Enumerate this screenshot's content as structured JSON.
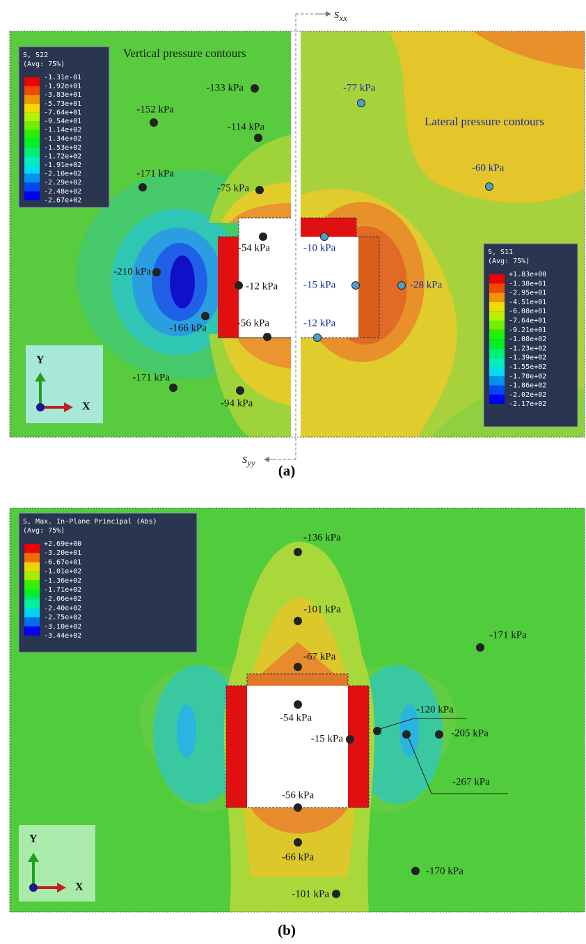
{
  "panel_a": {
    "caption": "(a)",
    "axis_x": {
      "symbol": "s",
      "subscript": "xx"
    },
    "axis_y": {
      "symbol": "s",
      "subscript": "yy"
    },
    "title_vertical": "Vertical pressure contours",
    "title_lateral": "Lateral pressure contours",
    "legend_s22": {
      "lines": [
        "S, S22",
        "(Avg: 75%)"
      ],
      "values": [
        "-1.31e-01",
        "-1.92e+01",
        "-3.83e+01",
        "-5.73e+01",
        "-7.64e+01",
        "-9.54e+01",
        "-1.14e+02",
        "-1.34e+02",
        "-1.53e+02",
        "-1.72e+02",
        "-1.91e+02",
        "-2.10e+02",
        "-2.29e+02",
        "-2.48e+02",
        "-2.67e+02"
      ]
    },
    "legend_s11": {
      "lines": [
        "S, S11",
        "(Avg: 75%)"
      ],
      "values": [
        "+1.83e+00",
        "-1.38e+01",
        "-2.95e+01",
        "-4.51e+01",
        "-6.08e+01",
        "-7.64e+01",
        "-9.21e+01",
        "-1.08e+02",
        "-1.23e+02",
        "-1.39e+02",
        "-1.55e+02",
        "-1.70e+02",
        "-1.86e+02",
        "-2.02e+02",
        "-2.17e+02"
      ]
    },
    "points_vertical": [
      "-133 kPa",
      "-152 kPa",
      "-114 kPa",
      "-171 kPa",
      "-75 kPa",
      "-54 kPa",
      "-210 kPa",
      "-12 kPa",
      "-166 kPa",
      "-56 kPa",
      "-171 kPa",
      "-94 kPa"
    ],
    "points_lateral": [
      "-77 kPa",
      "-60 kPa",
      "-10 kPa",
      "-15 kPa",
      "-28 kPa",
      "-12 kPa"
    ],
    "triad": {
      "y": "Y",
      "x": "X"
    }
  },
  "panel_b": {
    "caption": "(b)",
    "legend": {
      "lines": [
        "S, Max. In-Plane Principal (Abs)",
        "(Avg: 75%)"
      ],
      "values": [
        "+2.69e+00",
        "-3.20e+01",
        "-6.67e+01",
        "-1.01e+02",
        "-1.36e+02",
        "-1.71e+02",
        "-2.06e+02",
        "-2.40e+02",
        "-2.75e+02",
        "-3.10e+02",
        "-3.44e+02"
      ]
    },
    "points": [
      "-136 kPa",
      "-101 kPa",
      "-67 kPa",
      "-171 kPa",
      "-120 kPa",
      "-54 kPa",
      "-15 kPa",
      "-205 kPa",
      "-267 kPa",
      "-56 kPa",
      "-66 kPa",
      "-170 kPa",
      "-101 kPa"
    ],
    "triad": {
      "y": "Y",
      "x": "X"
    }
  }
}
